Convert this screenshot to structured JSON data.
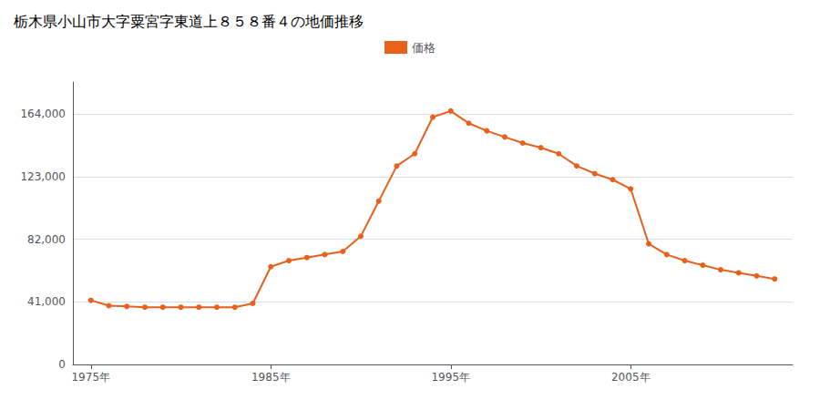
{
  "chart_data": {
    "type": "line",
    "title": "栃木県小山市大字粟宮字東道上８５８番４の地価推移",
    "x": [
      1975,
      1976,
      1977,
      1978,
      1979,
      1980,
      1981,
      1982,
      1983,
      1984,
      1985,
      1986,
      1987,
      1988,
      1989,
      1990,
      1991,
      1992,
      1993,
      1994,
      1995,
      1996,
      1997,
      1998,
      1999,
      2000,
      2001,
      2002,
      2003,
      2004,
      2005,
      2006,
      2007,
      2008,
      2009,
      2010,
      2011,
      2012,
      2013
    ],
    "series": [
      {
        "name": "価格",
        "color": "#e8601c",
        "marker": "circle",
        "values": [
          42000,
          38500,
          38000,
          37500,
          37500,
          37500,
          37500,
          37500,
          37500,
          40000,
          64000,
          68000,
          70000,
          72000,
          74000,
          84000,
          107000,
          130000,
          138000,
          162000,
          166000,
          158000,
          153000,
          149000,
          145000,
          142000,
          138000,
          130000,
          125000,
          121000,
          115000,
          79000,
          72000,
          68000,
          65000,
          62000,
          60000,
          58000,
          56000
        ]
      }
    ],
    "xlim": [
      1974,
      2014
    ],
    "xticks": [
      {
        "value": 1975,
        "label": "1975年"
      },
      {
        "value": 1985,
        "label": "1985年"
      },
      {
        "value": 1995,
        "label": "1995年"
      },
      {
        "value": 2005,
        "label": "2005年"
      }
    ],
    "ylim": [
      0,
      185000
    ],
    "yticks": [
      0,
      {
        "value": 41000,
        "label": "41,000"
      },
      {
        "value": 82000,
        "label": "82,000"
      },
      {
        "value": 123000,
        "label": "123,000"
      },
      {
        "value": 164000,
        "label": "164,000"
      }
    ],
    "grid": true,
    "legend": "top"
  }
}
